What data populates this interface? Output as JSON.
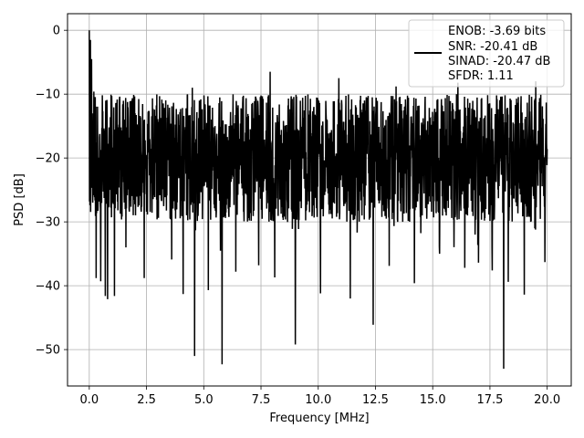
{
  "chart_data": {
    "type": "line",
    "title": "",
    "xlabel": "Frequency [MHz]",
    "ylabel": "PSD [dB]",
    "xlim": [
      -0.95,
      21.05
    ],
    "ylim": [
      -55.7,
      2.6
    ],
    "x_ticks": [
      0.0,
      2.5,
      5.0,
      7.5,
      10.0,
      12.5,
      15.0,
      17.5,
      20.0
    ],
    "x_tick_labels": [
      "0.0",
      "2.5",
      "5.0",
      "7.5",
      "10.0",
      "12.5",
      "15.0",
      "17.5",
      "20.0"
    ],
    "y_ticks": [
      0,
      -10,
      -20,
      -30,
      -40,
      -50
    ],
    "y_tick_labels": [
      "0",
      "−10",
      "−20",
      "−30",
      "−40",
      "−50"
    ],
    "grid": true,
    "legend_position": "top-right",
    "line_color": "#000000",
    "series": [
      {
        "x_range": [
          0,
          20
        ],
        "points": 2001,
        "baseline_db": -20,
        "noise_span_db": [
          -30,
          -10
        ],
        "max_db": -6.4,
        "dc_peak": {
          "x": 0.0,
          "y": 0.0
        },
        "dips": [
          {
            "x": 0.3,
            "y": -38.8
          },
          {
            "x": 0.5,
            "y": -39.3
          },
          {
            "x": 0.7,
            "y": -41.6
          },
          {
            "x": 0.8,
            "y": -42.1
          },
          {
            "x": 1.1,
            "y": -41.6
          },
          {
            "x": 1.6,
            "y": -34.0
          },
          {
            "x": 2.4,
            "y": -38.8
          },
          {
            "x": 3.6,
            "y": -35.9
          },
          {
            "x": 4.1,
            "y": -41.3
          },
          {
            "x": 4.6,
            "y": -51.0
          },
          {
            "x": 5.2,
            "y": -40.7
          },
          {
            "x": 5.8,
            "y": -52.3
          },
          {
            "x": 6.4,
            "y": -37.8
          },
          {
            "x": 7.4,
            "y": -36.8
          },
          {
            "x": 8.1,
            "y": -38.7
          },
          {
            "x": 9.0,
            "y": -49.2
          },
          {
            "x": 10.1,
            "y": -41.2
          },
          {
            "x": 11.4,
            "y": -42.0
          },
          {
            "x": 12.4,
            "y": -46.1
          },
          {
            "x": 13.1,
            "y": -36.9
          },
          {
            "x": 14.2,
            "y": -39.6
          },
          {
            "x": 15.3,
            "y": -35.0
          },
          {
            "x": 16.4,
            "y": -37.2
          },
          {
            "x": 17.0,
            "y": -36.4
          },
          {
            "x": 17.6,
            "y": -37.6
          },
          {
            "x": 18.1,
            "y": -53.0
          },
          {
            "x": 18.3,
            "y": -39.4
          },
          {
            "x": 19.0,
            "y": -41.4
          },
          {
            "x": 19.9,
            "y": -36.3
          }
        ],
        "peaks": [
          {
            "x": 0.05,
            "y": -1.5
          },
          {
            "x": 0.1,
            "y": -4.5
          },
          {
            "x": 0.2,
            "y": -9.6
          },
          {
            "x": 4.5,
            "y": -9.0
          },
          {
            "x": 7.9,
            "y": -6.5
          },
          {
            "x": 10.9,
            "y": -7.5
          },
          {
            "x": 13.4,
            "y": -8.8
          },
          {
            "x": 16.1,
            "y": -8.2
          },
          {
            "x": 19.5,
            "y": -8.0
          }
        ]
      }
    ],
    "legend": {
      "lines": [
        "ENOB: -3.69 bits",
        "SNR: -20.41 dB",
        "SINAD: -20.47 dB",
        "SFDR: 1.11"
      ]
    }
  }
}
